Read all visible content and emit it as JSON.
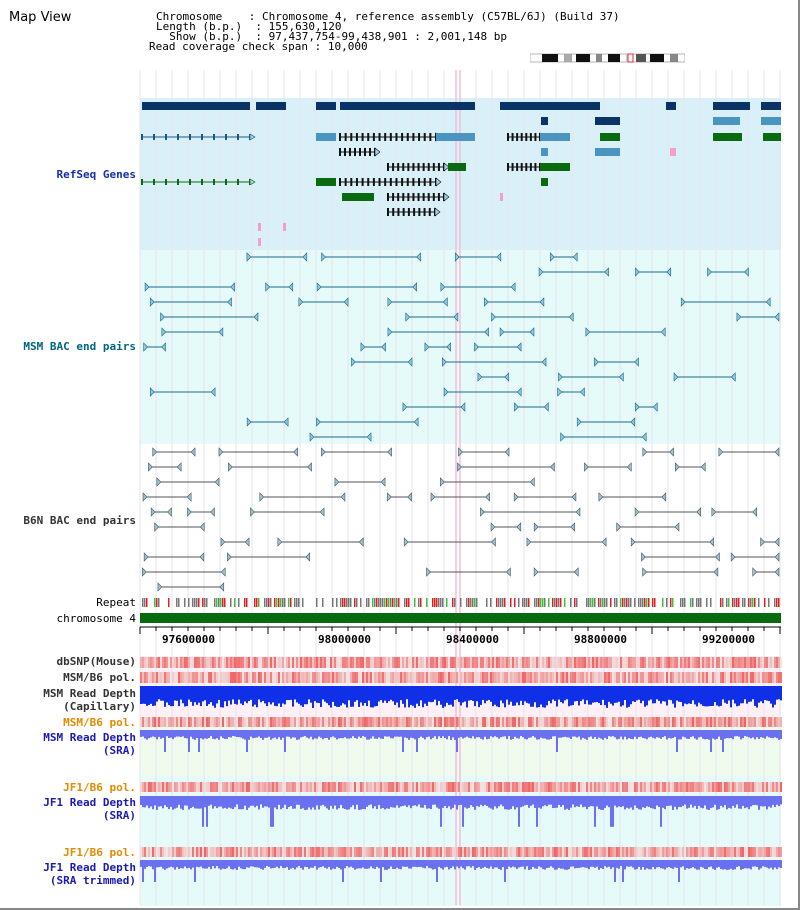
{
  "header": {
    "title": "Map View",
    "chromosome_label": "Chromosome",
    "chromosome_value": "Chromosome 4, reference assembly (C57BL/6J) (Build 37)",
    "length_label": "Length (b.p.)",
    "length_value": "155,630,120",
    "show_label": "Show (b.p.)",
    "show_value": "97,437,754-99,438,901 : 2,001,148 bp",
    "span_label": "Read coverage check span",
    "span_value": "10,000"
  },
  "tracks": {
    "refseq": "RefSeq Genes",
    "msm_bac": "MSM BAC end pairs",
    "b6n_bac": "B6N BAC end pairs",
    "repeat": "Repeat",
    "chromosome": "chromosome 4",
    "dbsnp": "dbSNP(Mouse)",
    "msm_b6_pol_1": "MSM/B6 pol.",
    "msm_read_depth_cap_1": "MSM Read Depth",
    "msm_read_depth_cap_2": "(Capillary)",
    "msm_b6_pol_2": "MSM/B6 pol.",
    "msm_read_depth_sra_1": "MSM Read Depth",
    "msm_read_depth_sra_2": "(SRA)",
    "jf1_b6_pol_1": "JF1/B6 pol.",
    "jf1_read_depth_sra_1": "JF1 Read Depth",
    "jf1_read_depth_sra_2": "(SRA)",
    "jf1_b6_pol_2": "JF1/B6 pol.",
    "jf1_read_depth_trim_1": "JF1 Read Depth",
    "jf1_read_depth_trim_2": "(SRA trimmed)"
  },
  "axis": {
    "ticks": [
      "97600000",
      "98000000",
      "98400000",
      "98800000",
      "99200000"
    ]
  },
  "colors": {
    "refseq_bg": "#daf0f8",
    "msm_bg": "#e6fafa",
    "b6n_bg": "#ffffff",
    "depth_bg_pink": "#fff0f8",
    "depth_bg_green": "#f0fbf0",
    "depth_bg_cyan": "#e6fafa",
    "gene_navy": "#0a3366",
    "gene_light": "#4a94c0",
    "gene_green": "#0a6a10",
    "bac_teal": "#1a6a8a",
    "bac_gray": "#555555",
    "snp_red": "#e83030",
    "depth_blue": "#1030e8",
    "depth_periwinkle": "#6a70f0",
    "chrom_green": "#0a6a10"
  }
}
